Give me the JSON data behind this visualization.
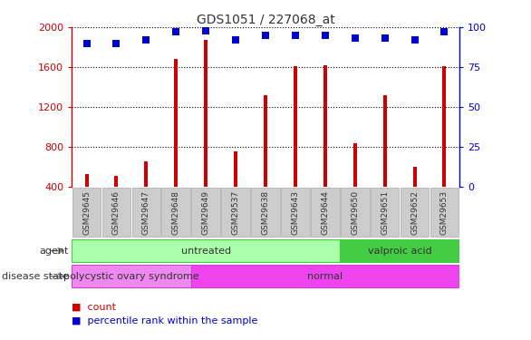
{
  "title": "GDS1051 / 227068_at",
  "samples": [
    "GSM29645",
    "GSM29646",
    "GSM29647",
    "GSM29648",
    "GSM29649",
    "GSM29537",
    "GSM29638",
    "GSM29643",
    "GSM29644",
    "GSM29650",
    "GSM29651",
    "GSM29652",
    "GSM29653"
  ],
  "counts": [
    530,
    510,
    660,
    1680,
    1870,
    760,
    1320,
    1610,
    1620,
    840,
    1320,
    600,
    1610
  ],
  "percentile_ranks": [
    90,
    90,
    92,
    97,
    98,
    92,
    95,
    95,
    95,
    93,
    93,
    92,
    97
  ],
  "ylim_left": [
    400,
    2000
  ],
  "ylim_right": [
    0,
    100
  ],
  "yticks_left": [
    400,
    800,
    1200,
    1600,
    2000
  ],
  "yticks_right": [
    0,
    25,
    50,
    75,
    100
  ],
  "bar_color": "#cc0000",
  "dot_color": "#0000cc",
  "agent_groups": [
    {
      "label": "untreated",
      "start": 0,
      "end": 9,
      "color": "#aaffaa",
      "edge_color": "#44cc44"
    },
    {
      "label": "valproic acid",
      "start": 9,
      "end": 13,
      "color": "#44cc44",
      "edge_color": "#44cc44"
    }
  ],
  "disease_groups": [
    {
      "label": "polycystic ovary syndrome",
      "start": 0,
      "end": 4,
      "color": "#ee88ee",
      "edge_color": "#cc44cc"
    },
    {
      "label": "normal",
      "start": 4,
      "end": 13,
      "color": "#ee44ee",
      "edge_color": "#cc44cc"
    }
  ],
  "legend_count_label": "count",
  "legend_pct_label": "percentile rank within the sample",
  "left_axis_color": "#cc0000",
  "right_axis_color": "#0000cc",
  "grid_color": "#000000",
  "background_color": "#ffffff",
  "bar_width": 0.12,
  "dot_size": 35,
  "label_box_color": "#cccccc",
  "label_text_color": "#333333",
  "agent_label": "agent",
  "disease_label": "disease state"
}
